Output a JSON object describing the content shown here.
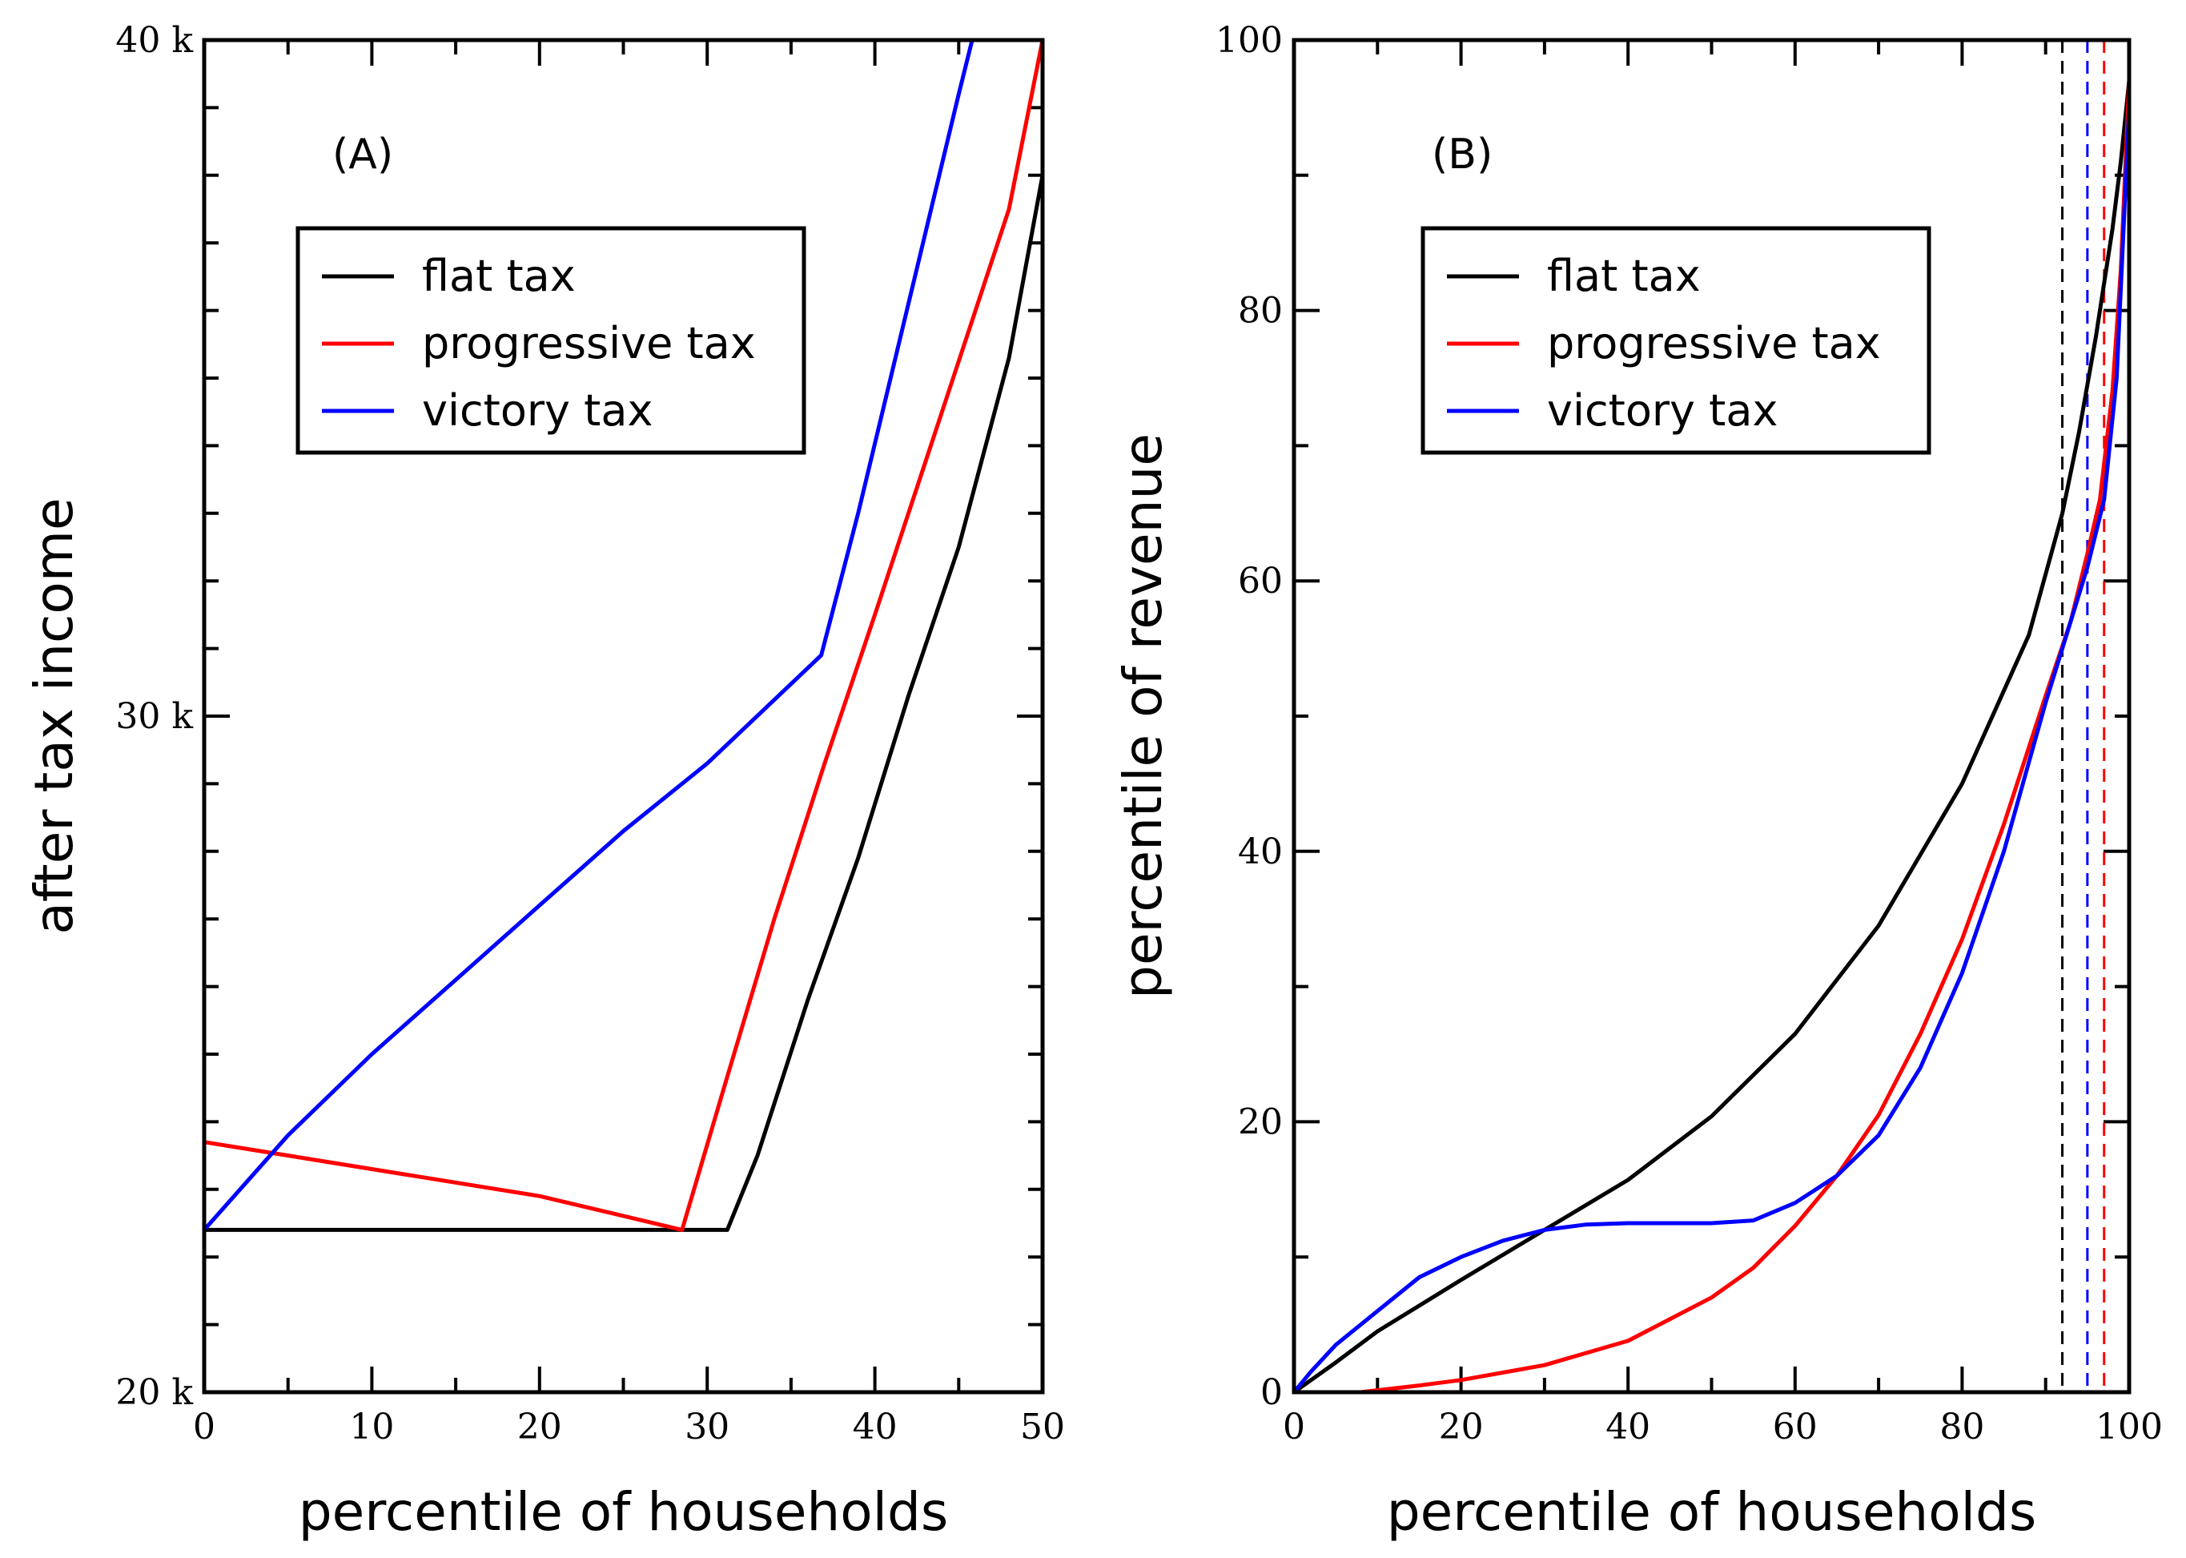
{
  "chart_data": [
    {
      "type": "line",
      "panel_label": "(A)",
      "xlabel": "percentile of households",
      "ylabel": "after tax income",
      "xlim": [
        0,
        50
      ],
      "ylim": [
        20000,
        40000
      ],
      "x_ticks": [
        0,
        10,
        20,
        30,
        40,
        50
      ],
      "x_tick_labels": [
        "0",
        "10",
        "20",
        "30",
        "40",
        "50"
      ],
      "y_ticks": [
        20000,
        30000,
        40000
      ],
      "y_tick_labels": [
        "20 k",
        "30 k",
        "40 k"
      ],
      "y_minor_step": 1000,
      "x_minor_step": 5,
      "legend_position": "upper-middle",
      "series": [
        {
          "name": "flat tax",
          "color": "#000000",
          "x": [
            0,
            31.2,
            33,
            36,
            39,
            42,
            45,
            48,
            50
          ],
          "y": [
            22400,
            22400,
            23500,
            25800,
            27900,
            30300,
            32500,
            35300,
            38000
          ]
        },
        {
          "name": "progressive tax",
          "color": "#ff0000",
          "x": [
            0,
            10,
            20,
            28.5,
            31,
            34,
            37,
            40,
            44,
            48,
            50
          ],
          "y": [
            23700,
            23300,
            22900,
            22400,
            24500,
            27000,
            29300,
            31500,
            34500,
            37500,
            40000
          ]
        },
        {
          "name": "victory tax",
          "color": "#0000ff",
          "x": [
            0,
            5,
            10,
            15,
            20,
            25,
            30,
            36.8,
            39,
            42,
            45,
            45.8
          ],
          "y": [
            22400,
            23800,
            25000,
            26100,
            27200,
            28300,
            29300,
            30900,
            33000,
            36100,
            39200,
            40000
          ]
        }
      ]
    },
    {
      "type": "line",
      "panel_label": "(B)",
      "xlabel": "percentile of households",
      "ylabel": "percentile of revenue",
      "xlim": [
        0,
        100
      ],
      "ylim": [
        0,
        100
      ],
      "x_ticks": [
        0,
        20,
        40,
        60,
        80,
        100
      ],
      "x_tick_labels": [
        "0",
        "20",
        "40",
        "60",
        "80",
        "100"
      ],
      "y_ticks": [
        0,
        20,
        40,
        60,
        80,
        100
      ],
      "y_tick_labels": [
        "0",
        "20",
        "40",
        "60",
        "80",
        "100"
      ],
      "y_minor_step": 10,
      "x_minor_step": 10,
      "legend_position": "upper-middle",
      "series": [
        {
          "name": "flat tax",
          "color": "#000000",
          "x": [
            0,
            5,
            10,
            20,
            30,
            40,
            50,
            60,
            70,
            80,
            88,
            92,
            94,
            96,
            98,
            99,
            100
          ],
          "y": [
            0,
            2.2,
            4.5,
            8.3,
            12,
            15.7,
            20.4,
            26.5,
            34.5,
            45,
            56,
            65,
            71,
            78,
            86,
            91,
            97
          ]
        },
        {
          "name": "progressive tax",
          "color": "#ff0000",
          "x": [
            8,
            15,
            20,
            30,
            40,
            50,
            55,
            60,
            65,
            70,
            75,
            80,
            85,
            90,
            93,
            95,
            96.5,
            98,
            99,
            100
          ],
          "y": [
            0,
            0.5,
            0.9,
            2,
            3.8,
            7,
            9.2,
            12.3,
            16,
            20.5,
            26.5,
            33.5,
            42,
            51.5,
            57,
            62,
            66,
            74,
            83,
            97
          ]
        },
        {
          "name": "victory tax",
          "color": "#0000ff",
          "x": [
            0,
            2,
            5,
            10,
            15,
            20,
            25,
            30,
            35,
            40,
            45,
            50,
            55,
            60,
            65,
            70,
            75,
            80,
            85,
            90,
            93,
            95,
            97,
            98.5,
            100
          ],
          "y": [
            0,
            1.5,
            3.5,
            6,
            8.5,
            10,
            11.2,
            12,
            12.4,
            12.5,
            12.5,
            12.5,
            12.7,
            14,
            16,
            19,
            24,
            31,
            40,
            51,
            57,
            61,
            66,
            75,
            95
          ]
        }
      ],
      "reference_lines": [
        {
          "x": 92,
          "color": "#000000"
        },
        {
          "x": 95,
          "color": "#0000ff"
        },
        {
          "x": 97,
          "color": "#ff0000"
        }
      ]
    }
  ]
}
